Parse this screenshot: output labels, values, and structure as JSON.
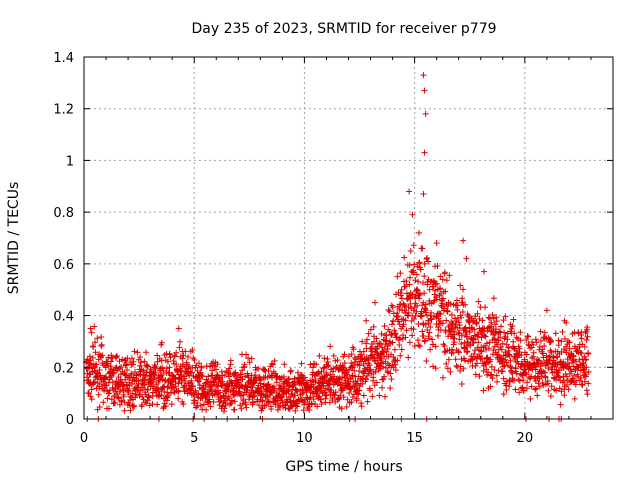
{
  "chart_data": {
    "type": "scatter",
    "title": "Day 235 of 2023, SRMTID for receiver p779",
    "xlabel": "GPS time / hours",
    "ylabel": "SRMTID / TECUs",
    "xlim": [
      0,
      24
    ],
    "ylim": [
      0,
      1.4
    ],
    "x_ticks": [
      "0",
      "5",
      "10",
      "15",
      "20"
    ],
    "x_tick_values": [
      0,
      5,
      10,
      15,
      20
    ],
    "y_ticks": [
      "0",
      "0.2",
      "0.4",
      "0.6",
      "0.8",
      "1",
      "1.2",
      "1.4"
    ],
    "y_tick_values": [
      0,
      0.2,
      0.4,
      0.6,
      0.8,
      1.0,
      1.2,
      1.4
    ],
    "grid": true,
    "marker": "+",
    "series": [
      {
        "name": "SRMTID",
        "color": "#e00000",
        "trend": [
          [
            0.1,
            0.18
          ],
          [
            0.5,
            0.2
          ],
          [
            1.0,
            0.16
          ],
          [
            1.5,
            0.14
          ],
          [
            2.0,
            0.15
          ],
          [
            2.5,
            0.14
          ],
          [
            3.0,
            0.13
          ],
          [
            3.5,
            0.16
          ],
          [
            4.0,
            0.14
          ],
          [
            4.5,
            0.17
          ],
          [
            5.0,
            0.15
          ],
          [
            5.5,
            0.12
          ],
          [
            6.0,
            0.13
          ],
          [
            6.5,
            0.12
          ],
          [
            7.0,
            0.13
          ],
          [
            7.5,
            0.14
          ],
          [
            8.0,
            0.12
          ],
          [
            8.5,
            0.11
          ],
          [
            9.0,
            0.1
          ],
          [
            9.5,
            0.1
          ],
          [
            10.0,
            0.11
          ],
          [
            10.5,
            0.13
          ],
          [
            11.0,
            0.14
          ],
          [
            11.5,
            0.15
          ],
          [
            12.0,
            0.15
          ],
          [
            12.5,
            0.17
          ],
          [
            13.0,
            0.2
          ],
          [
            13.5,
            0.23
          ],
          [
            14.0,
            0.3
          ],
          [
            14.5,
            0.42
          ],
          [
            15.0,
            0.48
          ],
          [
            15.5,
            0.45
          ],
          [
            16.0,
            0.42
          ],
          [
            16.5,
            0.38
          ],
          [
            17.0,
            0.35
          ],
          [
            17.5,
            0.32
          ],
          [
            18.0,
            0.3
          ],
          [
            18.5,
            0.27
          ],
          [
            19.0,
            0.25
          ],
          [
            19.5,
            0.24
          ],
          [
            20.0,
            0.22
          ],
          [
            20.5,
            0.22
          ],
          [
            21.0,
            0.22
          ],
          [
            21.5,
            0.2
          ],
          [
            22.0,
            0.21
          ],
          [
            22.5,
            0.22
          ],
          [
            22.9,
            0.23
          ]
        ],
        "peaks": [
          [
            15.4,
            1.33
          ],
          [
            15.45,
            1.27
          ],
          [
            15.5,
            1.18
          ],
          [
            15.45,
            1.03
          ],
          [
            14.75,
            0.88
          ],
          [
            15.4,
            0.87
          ],
          [
            14.9,
            0.79
          ],
          [
            15.2,
            0.72
          ],
          [
            16.0,
            0.68
          ],
          [
            17.2,
            0.69
          ],
          [
            17.35,
            0.62
          ],
          [
            18.15,
            0.57
          ],
          [
            13.2,
            0.45
          ],
          [
            12.8,
            0.38
          ],
          [
            0.3,
            0.35
          ],
          [
            4.3,
            0.35
          ],
          [
            21.0,
            0.42
          ],
          [
            21.8,
            0.38
          ],
          [
            22.8,
            0.34
          ]
        ],
        "zero_points": [
          0.15,
          0.65,
          3.4,
          4.95,
          5.45,
          6.5,
          8.1,
          9.5,
          12.05,
          12.3,
          14.4,
          15.55,
          20.05,
          21.1,
          21.55,
          21.65
        ]
      }
    ]
  }
}
